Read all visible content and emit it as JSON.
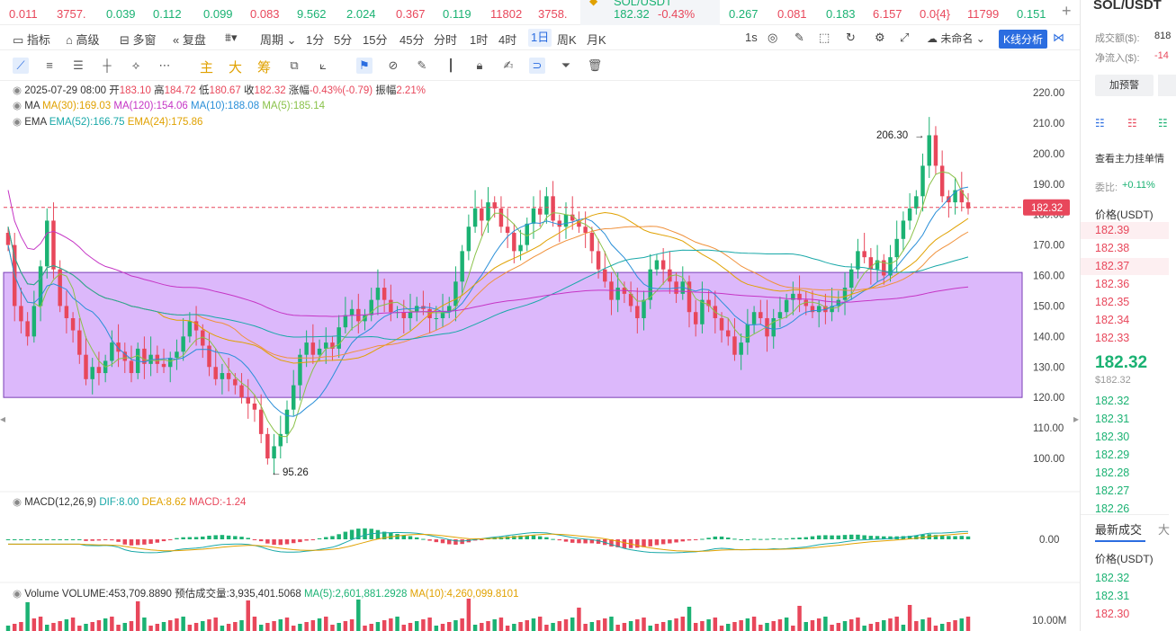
{
  "ticker": [
    {
      "v": "0.011",
      "c": "dn"
    },
    {
      "v": "3757.",
      "c": "dn"
    },
    {
      "v": "0.039",
      "c": "up"
    },
    {
      "v": "0.112",
      "c": "up"
    },
    {
      "v": "0.099",
      "c": "up"
    },
    {
      "v": "0.083",
      "c": "dn"
    },
    {
      "v": "9.562",
      "c": "up"
    },
    {
      "v": "2.024",
      "c": "up"
    },
    {
      "v": "0.367",
      "c": "dn"
    },
    {
      "v": "0.119",
      "c": "up"
    },
    {
      "v": "11802",
      "c": "dn"
    },
    {
      "v": "3758.",
      "c": "dn"
    },
    {
      "v": "SOL/USDT",
      "c": "up"
    },
    {
      "v": "0.267",
      "c": "up"
    },
    {
      "v": "0.081",
      "c": "dn"
    },
    {
      "v": "0.183",
      "c": "up"
    },
    {
      "v": "6.157",
      "c": "dn"
    },
    {
      "v": "0.0{4}",
      "c": "dn"
    },
    {
      "v": "11799",
      "c": "dn"
    },
    {
      "v": "0.151",
      "c": "up"
    }
  ],
  "active_ticker": {
    "price": "182.32",
    "change": "-0.43%"
  },
  "toolbar": {
    "indicators": "指标",
    "advanced": "高级",
    "multi_window": "多窗",
    "replay": "复盘",
    "period": "周期",
    "periods": [
      "1分",
      "5分",
      "15分",
      "45分",
      "分时",
      "1时",
      "4时",
      "1日",
      "周K",
      "月K"
    ],
    "active_period": "1日",
    "interval": "1s",
    "layout_name": "未命名",
    "kline_analysis": "K线分析"
  },
  "drawing_tools": {
    "main": "主",
    "big": "大",
    "chips": "筹"
  },
  "legend": {
    "ohlc": {
      "date": "2025-07-29 08:00",
      "open_label": "开",
      "open": "183.10",
      "high_label": "高",
      "high": "184.72",
      "low_label": "低",
      "low": "180.67",
      "close_label": "收",
      "close": "182.32",
      "change_label": "涨幅",
      "change": "-0.43%(-0.79)",
      "amp_label": "振幅",
      "amp": "2.21%"
    },
    "ma": {
      "name": "MA",
      "ma30": "MA(30):169.03",
      "ma120": "MA(120):154.06",
      "ma10": "MA(10):188.08",
      "ma5": "MA(5):185.14"
    },
    "ema": {
      "name": "EMA",
      "ema52": "EMA(52):166.75",
      "ema24": "EMA(24):175.86"
    },
    "macd": {
      "name": "MACD(12,26,9)",
      "dif": "DIF:8.00",
      "dea": "DEA:8.62",
      "macd": "MACD:-1.24"
    },
    "volume": {
      "name": "Volume",
      "vol": "VOLUME:453,709.8890",
      "est_label": "预估成交量:3,935,401.5068",
      "ma5": "MA(5):2,601,881.2928",
      "ma10": "MA(10):4,260,099.8101"
    }
  },
  "chart_data": {
    "type": "candlestick",
    "y_ticks": [
      "220.00",
      "210.00",
      "200.00",
      "190.00",
      "180.00",
      "170.00",
      "160.00",
      "150.00",
      "140.00",
      "130.00",
      "120.00",
      "110.00",
      "100.00"
    ],
    "ylim": [
      95,
      222
    ],
    "last_price": "182.32",
    "high_mark": "206.30",
    "low_mark": "95.26",
    "zone": [
      120,
      161
    ],
    "macd_zero": "0.00",
    "vol_tick": "10.00M",
    "closes": [
      170,
      150,
      145,
      140,
      150,
      163,
      178,
      162,
      150,
      146,
      142,
      134,
      126,
      130,
      128,
      132,
      138,
      135,
      132,
      128,
      136,
      131,
      134,
      131,
      130,
      133,
      135,
      140,
      145,
      142,
      137,
      130,
      126,
      128,
      126,
      124,
      120,
      118,
      116,
      108,
      100,
      104,
      108,
      116,
      124,
      134,
      138,
      134,
      136,
      138,
      136,
      143,
      147,
      149,
      145,
      147,
      152,
      156,
      152,
      148,
      148,
      146,
      148,
      150,
      149,
      146,
      146,
      148,
      150,
      158,
      168,
      176,
      182,
      178,
      184,
      182,
      176,
      174,
      168,
      170,
      177,
      182,
      180,
      186,
      178,
      176,
      180,
      178,
      176,
      174,
      168,
      162,
      158,
      152,
      156,
      154,
      150,
      146,
      152,
      162,
      165,
      162,
      158,
      154,
      158,
      148,
      144,
      152,
      150,
      146,
      142,
      140,
      134,
      138,
      144,
      148,
      146,
      140,
      146,
      148,
      152,
      154,
      152,
      150,
      148,
      150,
      148,
      150,
      152,
      156,
      162,
      168,
      166,
      162,
      165,
      160,
      166,
      172,
      178,
      182,
      186,
      196,
      206,
      196,
      186,
      184,
      188,
      184,
      182
    ]
  },
  "right_panel": {
    "title": "SOL/USDT",
    "turnover_label": "成交额($):",
    "turnover": "818",
    "net_inflow_label": "净流入($):",
    "net_inflow": "-14",
    "alert": "加预警",
    "see_orders": "查看主力挂单情",
    "ratio_label": "委比:",
    "ratio": "+0.11%",
    "price_header": "价格(USDT)",
    "asks": [
      "182.39",
      "182.38",
      "182.37",
      "182.36",
      "182.35",
      "182.34",
      "182.33"
    ],
    "last": "182.32",
    "last_usd": "$182.32",
    "bids": [
      "182.32",
      "182.31",
      "182.30",
      "182.29",
      "182.28",
      "182.27",
      "182.26"
    ],
    "latest_trades": "最新成交",
    "big": "大",
    "trade_price_header": "价格(USDT)",
    "trades": [
      "182.32",
      "182.31",
      "182.30"
    ]
  }
}
